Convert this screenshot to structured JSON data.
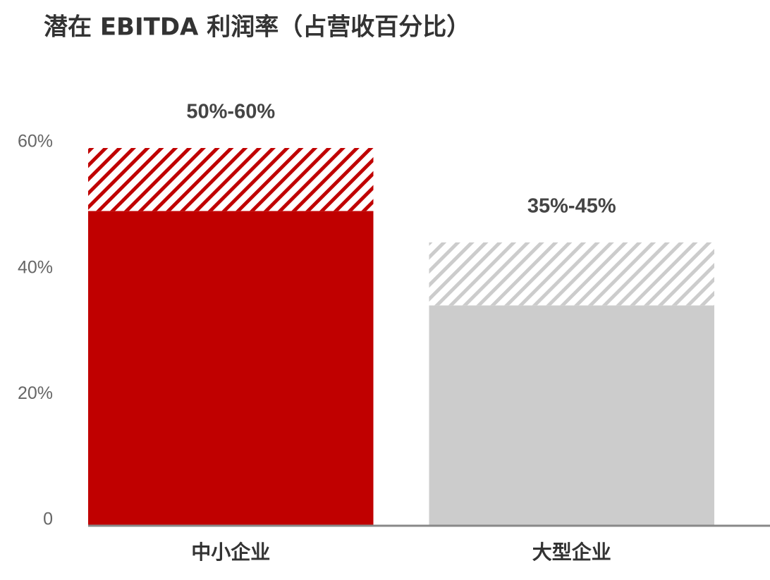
{
  "chart_data": {
    "type": "stacked_bar",
    "title": "潜在 EBITDA 利润率（占营收百分比）",
    "categories": [
      "中小企业",
      "大型企业"
    ],
    "series": [
      {
        "values": [
          50,
          35
        ],
        "colors": [
          "#c00000",
          "#cccccc"
        ],
        "pattern": "solid"
      },
      {
        "values": [
          10,
          10
        ],
        "colors": [
          "#c00000",
          "#cccccc"
        ],
        "pattern": "hatch"
      }
    ],
    "value_labels": [
      "50%-60%",
      "35%-45%"
    ],
    "ylim": [
      0,
      60
    ],
    "yticks": [
      0,
      {
        "value": 20,
        "label": "20%"
      },
      {
        "value": 40,
        "label": "40%"
      },
      {
        "value": 60,
        "label": "60%"
      }
    ],
    "grid": false
  }
}
